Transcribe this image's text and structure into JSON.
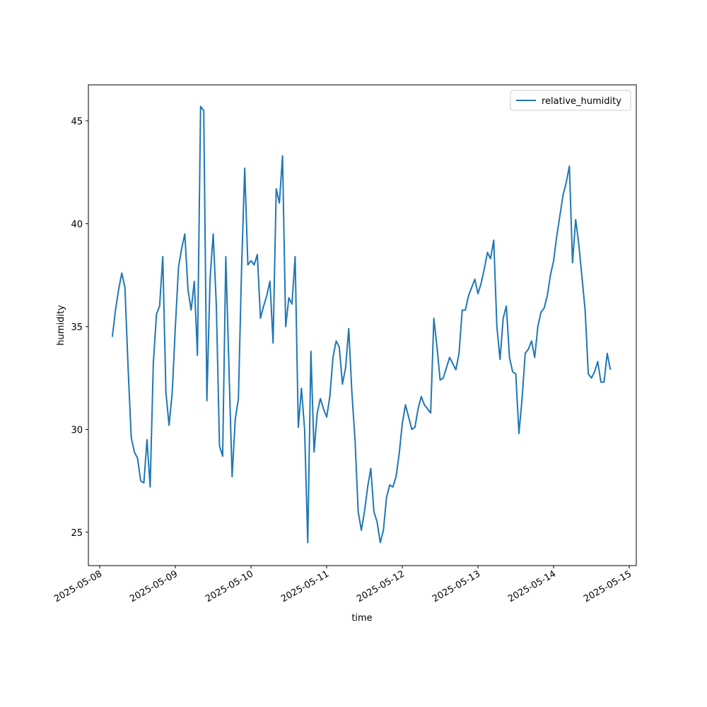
{
  "chart_data": {
    "type": "line",
    "xlabel": "time",
    "ylabel": "humidity",
    "legend": "upper right",
    "x": [
      "2025-05-08T04:00",
      "2025-05-08T05:00",
      "2025-05-08T06:00",
      "2025-05-08T07:00",
      "2025-05-08T08:00",
      "2025-05-08T09:00",
      "2025-05-08T10:00",
      "2025-05-08T11:00",
      "2025-05-08T12:00",
      "2025-05-08T13:00",
      "2025-05-08T14:00",
      "2025-05-08T15:00",
      "2025-05-08T16:00",
      "2025-05-08T17:00",
      "2025-05-08T18:00",
      "2025-05-08T19:00",
      "2025-05-08T20:00",
      "2025-05-08T21:00",
      "2025-05-08T22:00",
      "2025-05-08T23:00",
      "2025-05-09T00:00",
      "2025-05-09T01:00",
      "2025-05-09T02:00",
      "2025-05-09T03:00",
      "2025-05-09T04:00",
      "2025-05-09T05:00",
      "2025-05-09T06:00",
      "2025-05-09T07:00",
      "2025-05-09T08:00",
      "2025-05-09T09:00",
      "2025-05-09T10:00",
      "2025-05-09T11:00",
      "2025-05-09T12:00",
      "2025-05-09T13:00",
      "2025-05-09T14:00",
      "2025-05-09T15:00",
      "2025-05-09T16:00",
      "2025-05-09T17:00",
      "2025-05-09T18:00",
      "2025-05-09T19:00",
      "2025-05-09T20:00",
      "2025-05-09T21:00",
      "2025-05-09T22:00",
      "2025-05-09T23:00",
      "2025-05-10T00:00",
      "2025-05-10T01:00",
      "2025-05-10T02:00",
      "2025-05-10T03:00",
      "2025-05-10T04:00",
      "2025-05-10T05:00",
      "2025-05-10T06:00",
      "2025-05-10T07:00",
      "2025-05-10T08:00",
      "2025-05-10T09:00",
      "2025-05-10T10:00",
      "2025-05-10T11:00",
      "2025-05-10T12:00",
      "2025-05-10T13:00",
      "2025-05-10T14:00",
      "2025-05-10T15:00",
      "2025-05-10T16:00",
      "2025-05-10T17:00",
      "2025-05-10T18:00",
      "2025-05-10T19:00",
      "2025-05-10T20:00",
      "2025-05-10T21:00",
      "2025-05-10T22:00",
      "2025-05-10T23:00",
      "2025-05-11T00:00",
      "2025-05-11T01:00",
      "2025-05-11T02:00",
      "2025-05-11T03:00",
      "2025-05-11T04:00",
      "2025-05-11T05:00",
      "2025-05-11T06:00",
      "2025-05-11T07:00",
      "2025-05-11T08:00",
      "2025-05-11T09:00",
      "2025-05-11T10:00",
      "2025-05-11T11:00",
      "2025-05-11T12:00",
      "2025-05-11T13:00",
      "2025-05-11T14:00",
      "2025-05-11T15:00",
      "2025-05-11T16:00",
      "2025-05-11T17:00",
      "2025-05-11T18:00",
      "2025-05-11T19:00",
      "2025-05-11T20:00",
      "2025-05-11T21:00",
      "2025-05-11T22:00",
      "2025-05-11T23:00",
      "2025-05-12T00:00",
      "2025-05-12T01:00",
      "2025-05-12T02:00",
      "2025-05-12T03:00",
      "2025-05-12T04:00",
      "2025-05-12T05:00",
      "2025-05-12T06:00",
      "2025-05-12T07:00",
      "2025-05-12T08:00",
      "2025-05-12T09:00",
      "2025-05-12T10:00",
      "2025-05-12T11:00",
      "2025-05-12T12:00",
      "2025-05-12T13:00",
      "2025-05-12T14:00",
      "2025-05-12T15:00",
      "2025-05-12T16:00",
      "2025-05-12T17:00",
      "2025-05-12T18:00",
      "2025-05-12T19:00",
      "2025-05-12T20:00",
      "2025-05-12T21:00",
      "2025-05-12T22:00",
      "2025-05-12T23:00",
      "2025-05-13T00:00",
      "2025-05-13T01:00",
      "2025-05-13T02:00",
      "2025-05-13T03:00",
      "2025-05-13T04:00",
      "2025-05-13T05:00",
      "2025-05-13T06:00",
      "2025-05-13T07:00",
      "2025-05-13T08:00",
      "2025-05-13T09:00",
      "2025-05-13T10:00",
      "2025-05-13T11:00",
      "2025-05-13T12:00",
      "2025-05-13T13:00",
      "2025-05-13T14:00",
      "2025-05-13T15:00",
      "2025-05-13T16:00",
      "2025-05-13T17:00",
      "2025-05-13T18:00",
      "2025-05-13T19:00",
      "2025-05-13T20:00",
      "2025-05-13T21:00",
      "2025-05-13T22:00",
      "2025-05-13T23:00",
      "2025-05-14T00:00",
      "2025-05-14T01:00",
      "2025-05-14T02:00",
      "2025-05-14T03:00",
      "2025-05-14T04:00",
      "2025-05-14T05:00",
      "2025-05-14T06:00",
      "2025-05-14T07:00",
      "2025-05-14T08:00",
      "2025-05-14T09:00",
      "2025-05-14T10:00",
      "2025-05-14T11:00",
      "2025-05-14T12:00",
      "2025-05-14T13:00",
      "2025-05-14T14:00",
      "2025-05-14T15:00",
      "2025-05-14T16:00",
      "2025-05-14T17:00",
      "2025-05-14T18:00"
    ],
    "series": [
      {
        "name": "relative_humidity",
        "color": "#1f77b4",
        "values": [
          34.5,
          35.8,
          36.8,
          37.6,
          36.9,
          33.0,
          29.6,
          28.9,
          28.6,
          27.5,
          27.4,
          29.5,
          27.2,
          33.2,
          35.6,
          36.0,
          38.4,
          31.8,
          30.2,
          31.8,
          35.0,
          37.9,
          38.8,
          39.5,
          36.8,
          35.8,
          37.2,
          33.6,
          45.7,
          45.5,
          31.4,
          37.3,
          39.5,
          36.0,
          29.2,
          28.7,
          38.4,
          33.0,
          27.7,
          30.5,
          31.5,
          37.8,
          42.7,
          38.0,
          38.2,
          38.0,
          38.5,
          35.4,
          36.0,
          36.5,
          37.2,
          34.2,
          41.7,
          41.0,
          43.3,
          35.0,
          36.4,
          36.1,
          38.4,
          30.1,
          32.0,
          30.0,
          24.5,
          33.8,
          28.9,
          30.8,
          31.5,
          31.0,
          30.6,
          31.6,
          33.5,
          34.3,
          34.0,
          32.2,
          33.0,
          34.9,
          31.8,
          29.5,
          26.0,
          25.1,
          26.0,
          27.2,
          28.1,
          26.0,
          25.5,
          24.5,
          25.1,
          26.7,
          27.3,
          27.2,
          27.7,
          28.8,
          30.3,
          31.2,
          30.6,
          30.0,
          30.1,
          31.0,
          31.6,
          31.2,
          31.0,
          30.8,
          35.4,
          34.0,
          32.4,
          32.5,
          33.0,
          33.5,
          33.2,
          32.9,
          33.7,
          35.8,
          35.8,
          36.5,
          36.9,
          37.3,
          36.6,
          37.1,
          37.8,
          38.6,
          38.3,
          39.2,
          35.0,
          33.4,
          35.4,
          36.0,
          33.5,
          32.8,
          32.7,
          29.8,
          31.5,
          33.7,
          33.9,
          34.3,
          33.5,
          35.0,
          35.7,
          35.9,
          36.5,
          37.5,
          38.2,
          39.4,
          40.4,
          41.4,
          42.0,
          42.8,
          38.1,
          40.2,
          39.0,
          37.4,
          35.8,
          32.7,
          32.5,
          32.8,
          33.3,
          32.3,
          32.3,
          33.7,
          32.9
        ]
      }
    ],
    "xlim": [
      "2025-05-07T20:24",
      "2025-05-15T02:14"
    ],
    "xticks": [
      "2025-05-08",
      "2025-05-09",
      "2025-05-10",
      "2025-05-11",
      "2025-05-12",
      "2025-05-13",
      "2025-05-14",
      "2025-05-15"
    ],
    "ylim": [
      23.38,
      46.75
    ],
    "yticks": [
      25,
      30,
      35,
      40,
      45
    ]
  }
}
